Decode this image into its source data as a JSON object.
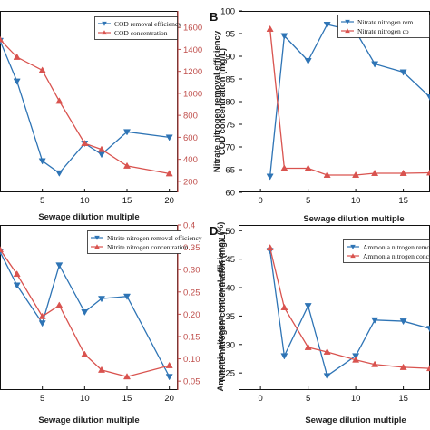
{
  "colors": {
    "blue": "#2e74b5",
    "red": "#d9534f",
    "axis_red": "#c0504d",
    "axis_black": "#111111"
  },
  "chart_data": [
    {
      "type": "line",
      "panel_letter": "",
      "xlabel": "Sewage dilution multiple",
      "ylabel_right": "COD concentration (mg/L)",
      "x_ticks": [
        "5",
        "10",
        "15",
        "20"
      ],
      "y_right_ticks": [
        "200",
        "400",
        "600",
        "800",
        "1000",
        "1200",
        "1400",
        "1600"
      ],
      "xlim": [
        0,
        21
      ],
      "ylim_right": [
        100,
        1750
      ],
      "series": [
        {
          "name": "COD removal efficiency",
          "color": "blue",
          "marker": "triangle-down",
          "axis": "right",
          "x": [
            0,
            2,
            5,
            7,
            10,
            12,
            15,
            20
          ],
          "y": [
            1480,
            1110,
            385,
            275,
            545,
            445,
            650,
            600
          ]
        },
        {
          "name": "COD concentration",
          "color": "red",
          "marker": "triangle-up",
          "axis": "right",
          "x": [
            0,
            2,
            5,
            7,
            10,
            12,
            15,
            20
          ],
          "y": [
            1490,
            1330,
            1210,
            930,
            545,
            490,
            340,
            270
          ]
        }
      ]
    },
    {
      "type": "line",
      "panel_letter": "B",
      "xlabel": "Sewage dilution multiple",
      "ylabel": "Nitrate nitrogen removal efficiency",
      "x_ticks": [
        "0",
        "5",
        "10",
        "15"
      ],
      "y_ticks": [
        "60",
        "65",
        "70",
        "75",
        "80",
        "85",
        "90",
        "95",
        "100"
      ],
      "xlim": [
        -2.3,
        17.8
      ],
      "ylim": [
        60,
        100
      ],
      "series": [
        {
          "name": "Nitrate nitrogen rem",
          "color": "blue",
          "marker": "triangle-down",
          "x": [
            1,
            2.5,
            5,
            7,
            10,
            12,
            15,
            17.8
          ],
          "y": [
            63.5,
            94.5,
            89,
            97,
            95.5,
            88.3,
            86.5,
            81
          ]
        },
        {
          "name": "Nitrate nitrogen co",
          "color": "red",
          "marker": "triangle-up",
          "x": [
            1,
            2.5,
            5,
            7,
            10,
            12,
            15,
            17.8
          ],
          "y": [
            96,
            65.3,
            65.3,
            63.8,
            63.8,
            64.2,
            64.2,
            64.3
          ]
        }
      ]
    },
    {
      "type": "line",
      "panel_letter": "",
      "xlabel": "Sewage dilution multiple",
      "ylabel_right": "Nitrite nitrogen concentration (mg/L)",
      "x_ticks": [
        "5",
        "10",
        "15",
        "20"
      ],
      "y_right_ticks": [
        "0.05",
        "0.10",
        "0.15",
        "0.20",
        "0.25",
        "0.30",
        "0.35",
        "0.4"
      ],
      "xlim": [
        0,
        21
      ],
      "ylim_right": [
        0.03,
        0.4
      ],
      "series": [
        {
          "name": "Nitrite nitrogen removal efficiency",
          "color": "blue",
          "marker": "triangle-down",
          "axis": "right",
          "x": [
            0,
            2,
            5,
            7,
            10,
            12,
            15,
            20
          ],
          "y": [
            0.34,
            0.265,
            0.18,
            0.31,
            0.205,
            0.235,
            0.24,
            0.06
          ]
        },
        {
          "name": "Nitrite nitrogen concentration",
          "color": "red",
          "marker": "triangle-up",
          "axis": "right",
          "x": [
            0,
            2,
            5,
            7,
            10,
            12,
            15,
            20
          ],
          "y": [
            0.345,
            0.29,
            0.195,
            0.22,
            0.11,
            0.075,
            0.06,
            0.085
          ]
        }
      ]
    },
    {
      "type": "line",
      "panel_letter": "D",
      "xlabel": "Sewage dilution multiple",
      "ylabel": "Ammonia nitrogen removal efficiency (%)",
      "x_ticks": [
        "0",
        "5",
        "10",
        "15"
      ],
      "y_ticks": [
        "25",
        "30",
        "35",
        "40",
        "45",
        "50"
      ],
      "xlim": [
        -2.3,
        17.8
      ],
      "ylim": [
        22,
        51
      ],
      "series": [
        {
          "name": "Ammonia nitrogen remo",
          "color": "blue",
          "marker": "triangle-down",
          "x": [
            1,
            2.5,
            5,
            7,
            10,
            12,
            15,
            17.8
          ],
          "y": [
            46.5,
            28,
            36.8,
            24.5,
            28,
            34.3,
            34.1,
            32.8
          ]
        },
        {
          "name": "Ammonia nitrogen conc",
          "color": "red",
          "marker": "triangle-up",
          "x": [
            1,
            2.5,
            5,
            7,
            10,
            12,
            15,
            17.8
          ],
          "y": [
            47,
            36.5,
            29.5,
            28.7,
            27.3,
            26.5,
            26,
            25.8
          ]
        }
      ]
    }
  ]
}
